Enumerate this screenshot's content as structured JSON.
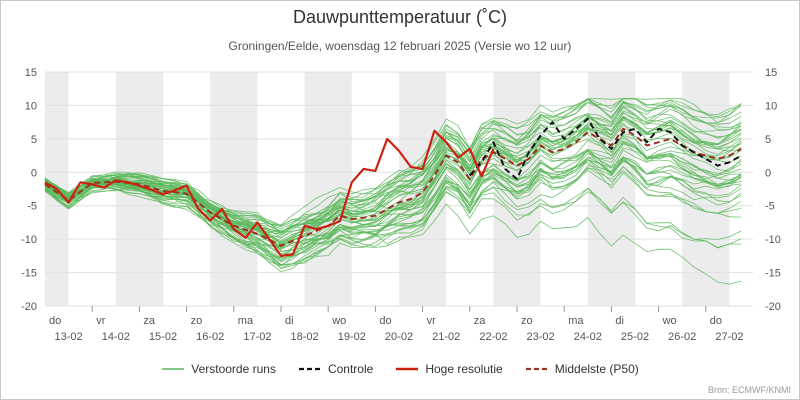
{
  "header": {
    "title": "Dauwpunttemperatuur (˚C)",
    "subtitle": "Groningen/Eelde, woensdag 12 februari 2025 (Versie wo 12 uur)"
  },
  "credit": "Bron: ECMWF/KNMI",
  "legend": [
    {
      "label": "Verstoorde runs",
      "color": "#5cb85c",
      "dash": "none",
      "width": 1.2
    },
    {
      "label": "Controle",
      "color": "#111111",
      "dash": "6,4",
      "width": 2.2
    },
    {
      "label": "Hoge resolutie",
      "color": "#cc2211",
      "dash": "none",
      "width": 2.4
    },
    {
      "label": "Middelste (P50)",
      "color": "#993322",
      "dash": "6,4",
      "width": 2.2
    }
  ],
  "chart_data": {
    "type": "line",
    "title": "Dauwpunttemperatuur (˚C)",
    "subtitle": "Groningen/Eelde, woensdag 12 februari 2025 (Versie wo 12 uur)",
    "xlabel": "",
    "ylabel": "",
    "ylim": [
      -20,
      15
    ],
    "yticks": [
      -20,
      -15,
      -10,
      -5,
      0,
      5,
      10,
      15
    ],
    "xlim": [
      0,
      15
    ],
    "x_unit": "days since 12-02 12:00 (index along the time axis)",
    "day_labels": [
      {
        "day": "do",
        "date": "13-02"
      },
      {
        "day": "vr",
        "date": "14-02"
      },
      {
        "day": "za",
        "date": "15-02"
      },
      {
        "day": "zo",
        "date": "16-02"
      },
      {
        "day": "ma",
        "date": "17-02"
      },
      {
        "day": "di",
        "date": "18-02"
      },
      {
        "day": "wo",
        "date": "19-02"
      },
      {
        "day": "do",
        "date": "20-02"
      },
      {
        "day": "vr",
        "date": "21-02"
      },
      {
        "day": "za",
        "date": "22-02"
      },
      {
        "day": "zo",
        "date": "23-02"
      },
      {
        "day": "ma",
        "date": "24-02"
      },
      {
        "day": "di",
        "date": "25-02"
      },
      {
        "day": "wo",
        "date": "26-02"
      },
      {
        "day": "do",
        "date": "27-02"
      }
    ],
    "shaded_day_indices": [
      0,
      2,
      4,
      6,
      8,
      10,
      12,
      14
    ],
    "grid": true,
    "colors": {
      "ensemble": "#5cb85c",
      "control": "#111111",
      "hres": "#cc2211",
      "median": "#993322",
      "band": "#ececec",
      "grid": "#e0e0e0"
    },
    "ensemble_members": 50,
    "series": [
      {
        "name": "Hoge resolutie",
        "x": [
          0,
          0.25,
          0.5,
          0.75,
          1,
          1.25,
          1.5,
          1.75,
          2,
          2.25,
          2.5,
          2.75,
          3,
          3.25,
          3.5,
          3.75,
          4,
          4.25,
          4.5,
          4.75,
          5,
          5.25,
          5.5,
          5.75,
          6,
          6.25,
          6.5,
          6.75,
          7,
          7.25,
          7.5,
          7.75,
          8,
          8.25,
          8.5,
          8.75,
          9,
          9.25,
          9.5
        ],
        "y": [
          -1.5,
          -2.5,
          -4.5,
          -1.5,
          -1.8,
          -2.3,
          -1.2,
          -1.5,
          -2,
          -2.6,
          -3.3,
          -2.7,
          -2,
          -5.5,
          -7.2,
          -5.5,
          -8.5,
          -9.8,
          -7.5,
          -10,
          -12.5,
          -12.3,
          -8,
          -8.5,
          -8,
          -7.3,
          -1.5,
          0.5,
          0.2,
          5,
          3.2,
          0.8,
          0.5,
          6.2,
          4.5,
          2.2,
          3.5,
          -0.6,
          3.5
        ]
      },
      {
        "name": "Controle",
        "x": [
          9.0,
          9.25,
          9.5,
          9.75,
          10,
          10.25,
          10.5,
          10.75,
          11,
          11.25,
          11.5,
          11.75,
          12,
          12.25,
          12.5,
          12.75,
          13,
          13.25,
          13.5,
          13.75,
          14,
          14.25,
          14.5,
          14.75
        ],
        "y": [
          -0.5,
          1.5,
          4.5,
          0.5,
          -1.0,
          3.0,
          5.5,
          7.5,
          5.0,
          6.5,
          8.0,
          5.0,
          3.5,
          6.0,
          6.5,
          4.5,
          6.5,
          6.0,
          4.0,
          3.0,
          2.0,
          1.0,
          1.5,
          2.5
        ]
      },
      {
        "name": "Middelste (P50)",
        "x": [
          0,
          0.5,
          1,
          1.5,
          2,
          2.5,
          3,
          3.5,
          4,
          4.5,
          5,
          5.5,
          6,
          6.25,
          6.5,
          6.75,
          7,
          7.25,
          7.5,
          7.75,
          8,
          8.25,
          8.5,
          8.75,
          9,
          9.25,
          9.5,
          9.75,
          10,
          10.25,
          10.5,
          10.75,
          11,
          11.25,
          11.5,
          11.75,
          12,
          12.25,
          12.5,
          12.75,
          13,
          13.25,
          13.5,
          13.75,
          14,
          14.25,
          14.5,
          14.75
        ],
        "y": [
          -1.8,
          -4.2,
          -1.6,
          -1.4,
          -1.8,
          -2.8,
          -3.2,
          -6.0,
          -8.0,
          -9.2,
          -11.0,
          -9.5,
          -8.0,
          -6.5,
          -7.0,
          -6.8,
          -6.5,
          -5.5,
          -4.5,
          -4.0,
          -3.0,
          -0.5,
          2.5,
          1.5,
          -1.0,
          2.0,
          3.0,
          2.0,
          1.0,
          2.0,
          4.0,
          3.0,
          3.5,
          4.5,
          6.0,
          5.0,
          4.0,
          6.5,
          5.5,
          4.0,
          4.5,
          5.0,
          4.0,
          3.0,
          2.5,
          2.0,
          2.5,
          3.5
        ]
      }
    ]
  }
}
